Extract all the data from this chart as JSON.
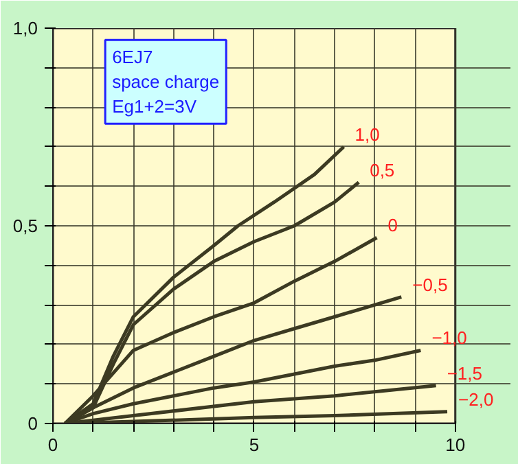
{
  "chart_data": {
    "type": "line",
    "annotations": [
      "6EJ7",
      "space charge",
      "Eg1+2=3V"
    ],
    "xlim": [
      0,
      10
    ],
    "ylim": [
      0,
      1.0
    ],
    "xticks": [
      0,
      {
        "value": 1,
        "label": null
      },
      {
        "value": 2,
        "label": null
      },
      {
        "value": 3,
        "label": null
      },
      {
        "value": 4,
        "label": null
      },
      5,
      {
        "value": 6,
        "label": null
      },
      {
        "value": 7,
        "label": null
      },
      {
        "value": 8,
        "label": null
      },
      {
        "value": 9,
        "label": null
      },
      10
    ],
    "yticks": [
      0,
      {
        "value": 0.1,
        "label": null
      },
      {
        "value": 0.2,
        "label": null
      },
      {
        "value": 0.3,
        "label": null
      },
      {
        "value": 0.4,
        "label": null
      },
      {
        "value": 0.5,
        "label": "0,5"
      },
      {
        "value": 0.6,
        "label": null
      },
      {
        "value": 0.7,
        "label": null
      },
      {
        "value": 0.8,
        "label": null
      },
      {
        "value": 0.9,
        "label": null
      },
      {
        "value": 1.0,
        "label": "1,0"
      }
    ],
    "grid": true,
    "marker": "none",
    "line_style": "solid",
    "series": [
      {
        "name": "1,0",
        "color": "#3c3a22",
        "x": [
          0.3,
          1.0,
          1.5,
          2,
          3,
          4,
          4.6,
          5.5,
          6.5,
          7.23
        ],
        "values": [
          0.0,
          0.05,
          0.17,
          0.27,
          0.37,
          0.45,
          0.5,
          0.56,
          0.63,
          0.7
        ]
      },
      {
        "name": "0,5",
        "color": "#3c3a22",
        "x": [
          0.3,
          1.0,
          1.5,
          2,
          3,
          4,
          5,
          6,
          7,
          7.6
        ],
        "values": [
          0.0,
          0.04,
          0.15,
          0.25,
          0.34,
          0.41,
          0.46,
          0.5,
          0.56,
          0.61
        ]
      },
      {
        "name": "0",
        "color": "#3c3a22",
        "x": [
          0.3,
          1,
          2,
          3,
          4,
          5,
          6,
          7,
          8.05
        ],
        "values": [
          0.0,
          0.07,
          0.185,
          0.23,
          0.27,
          0.305,
          0.36,
          0.41,
          0.47
        ]
      },
      {
        "name": "−0,5",
        "color": "#3c3a22",
        "x": [
          0.3,
          1,
          2,
          3,
          4,
          5,
          6,
          7,
          8.66
        ],
        "values": [
          0.0,
          0.04,
          0.09,
          0.13,
          0.17,
          0.21,
          0.24,
          0.27,
          0.32
        ]
      },
      {
        "name": "−1,0",
        "color": "#3c3a22",
        "x": [
          0.3,
          1,
          2,
          3,
          4,
          5,
          6,
          7,
          8,
          9.14
        ],
        "values": [
          0.0,
          0.025,
          0.05,
          0.07,
          0.09,
          0.105,
          0.125,
          0.145,
          0.16,
          0.185
        ]
      },
      {
        "name": "−1,5",
        "color": "#3c3a22",
        "x": [
          0.3,
          2,
          5,
          7,
          9.52
        ],
        "values": [
          0.0,
          0.02,
          0.055,
          0.07,
          0.096
        ]
      },
      {
        "name": "−2,0",
        "color": "#3c3a22",
        "x": [
          0.3,
          2,
          5,
          7,
          9.8
        ],
        "values": [
          0.0,
          0.005,
          0.015,
          0.02,
          0.03
        ]
      }
    ]
  }
}
